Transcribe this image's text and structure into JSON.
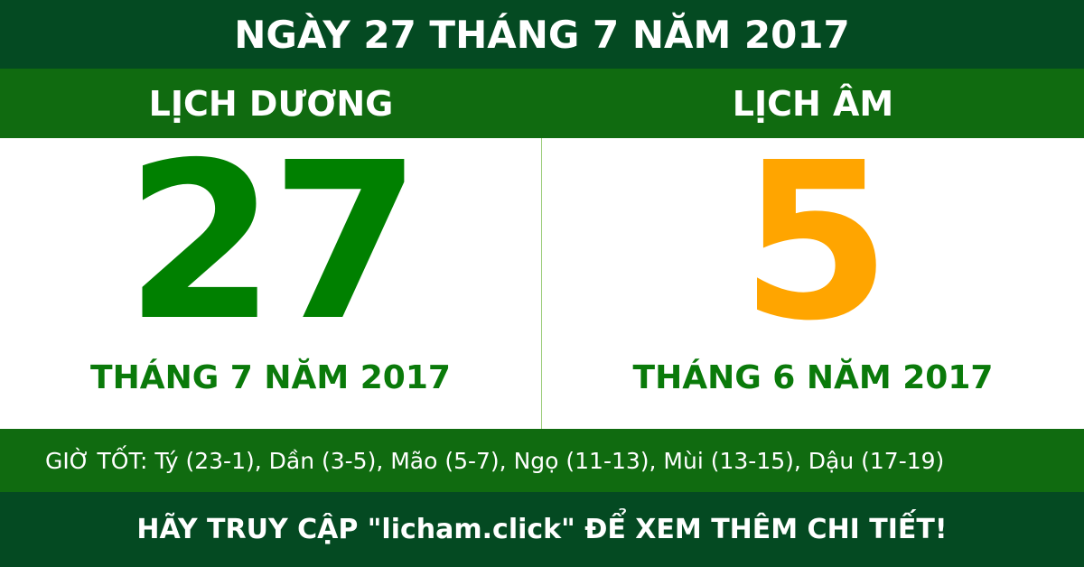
{
  "header": {
    "title": "NGÀY 27 THÁNG 7 NĂM 2017"
  },
  "solar": {
    "label": "LỊCH DƯƠNG",
    "day": "27",
    "month_year": "THÁNG 7 NĂM 2017"
  },
  "lunar": {
    "label": "LỊCH ÂM",
    "day": "5",
    "month_year": "THÁNG 6 NĂM 2017"
  },
  "good_hours": "GIỜ TỐT: Tý (23-1), Dần (3-5), Mão (5-7), Ngọ (11-13), Mùi (13-15), Dậu (17-19)",
  "footer": "HÃY TRUY CẬP \"licham.click\" ĐỂ XEM THÊM CHI TIẾT!",
  "colors": {
    "dark_green": "#044a22",
    "green": "#106b10",
    "solar_day": "#008000",
    "lunar_day": "#ffa500"
  }
}
